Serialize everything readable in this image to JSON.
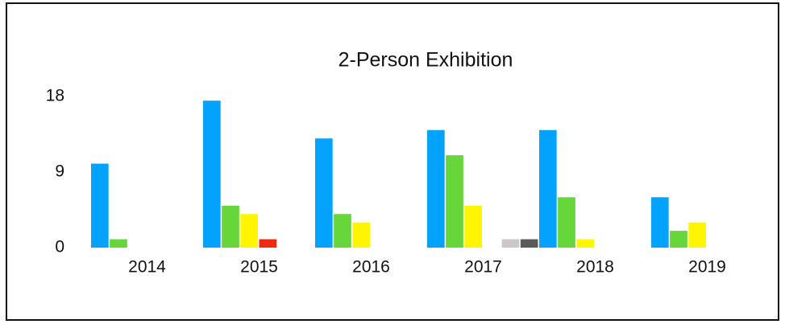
{
  "chart_data": {
    "type": "bar",
    "title": "2-Person Exhibition",
    "categories": [
      "2014",
      "2015",
      "2016",
      "2017",
      "2018",
      "2019"
    ],
    "series": [
      {
        "color": "#03a2fc",
        "values": [
          10,
          17.5,
          13,
          14,
          14,
          6
        ]
      },
      {
        "color": "#66d63a",
        "values": [
          1,
          5,
          4,
          11,
          6,
          2
        ]
      },
      {
        "color": "#fff500",
        "values": [
          0,
          4,
          3,
          5,
          1,
          3
        ]
      },
      {
        "color": "#ee2a0f",
        "values": [
          0,
          1,
          0,
          0,
          0,
          0
        ]
      },
      {
        "color": "#cdc6c6",
        "values": [
          0,
          0,
          0,
          1,
          0,
          0
        ]
      },
      {
        "color": "#5a5a5a",
        "values": [
          0,
          0,
          0,
          1,
          0,
          0
        ]
      }
    ],
    "ylim": [
      0,
      18
    ],
    "yticks": [
      0,
      9,
      18
    ],
    "grid": false
  }
}
